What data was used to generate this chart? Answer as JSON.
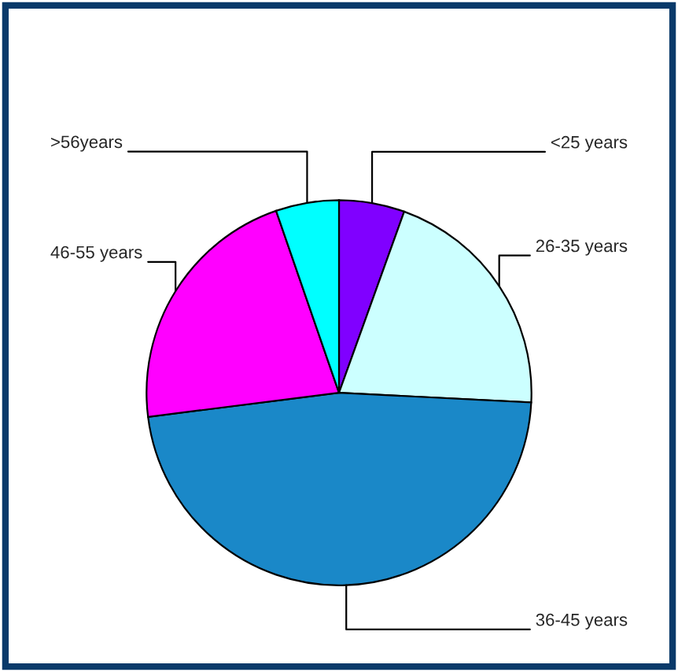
{
  "chart_data": {
    "type": "pie",
    "categories": [
      "<25 years",
      "26-35 years",
      "36-45 years",
      "46-55 years",
      ">56years"
    ],
    "values": [
      5.5,
      20.3,
      47.2,
      21.7,
      5.3
    ],
    "colors": [
      "#8000ff",
      "#ccffff",
      "#1a88c8",
      "#ff00ff",
      "#00ffff"
    ]
  }
}
